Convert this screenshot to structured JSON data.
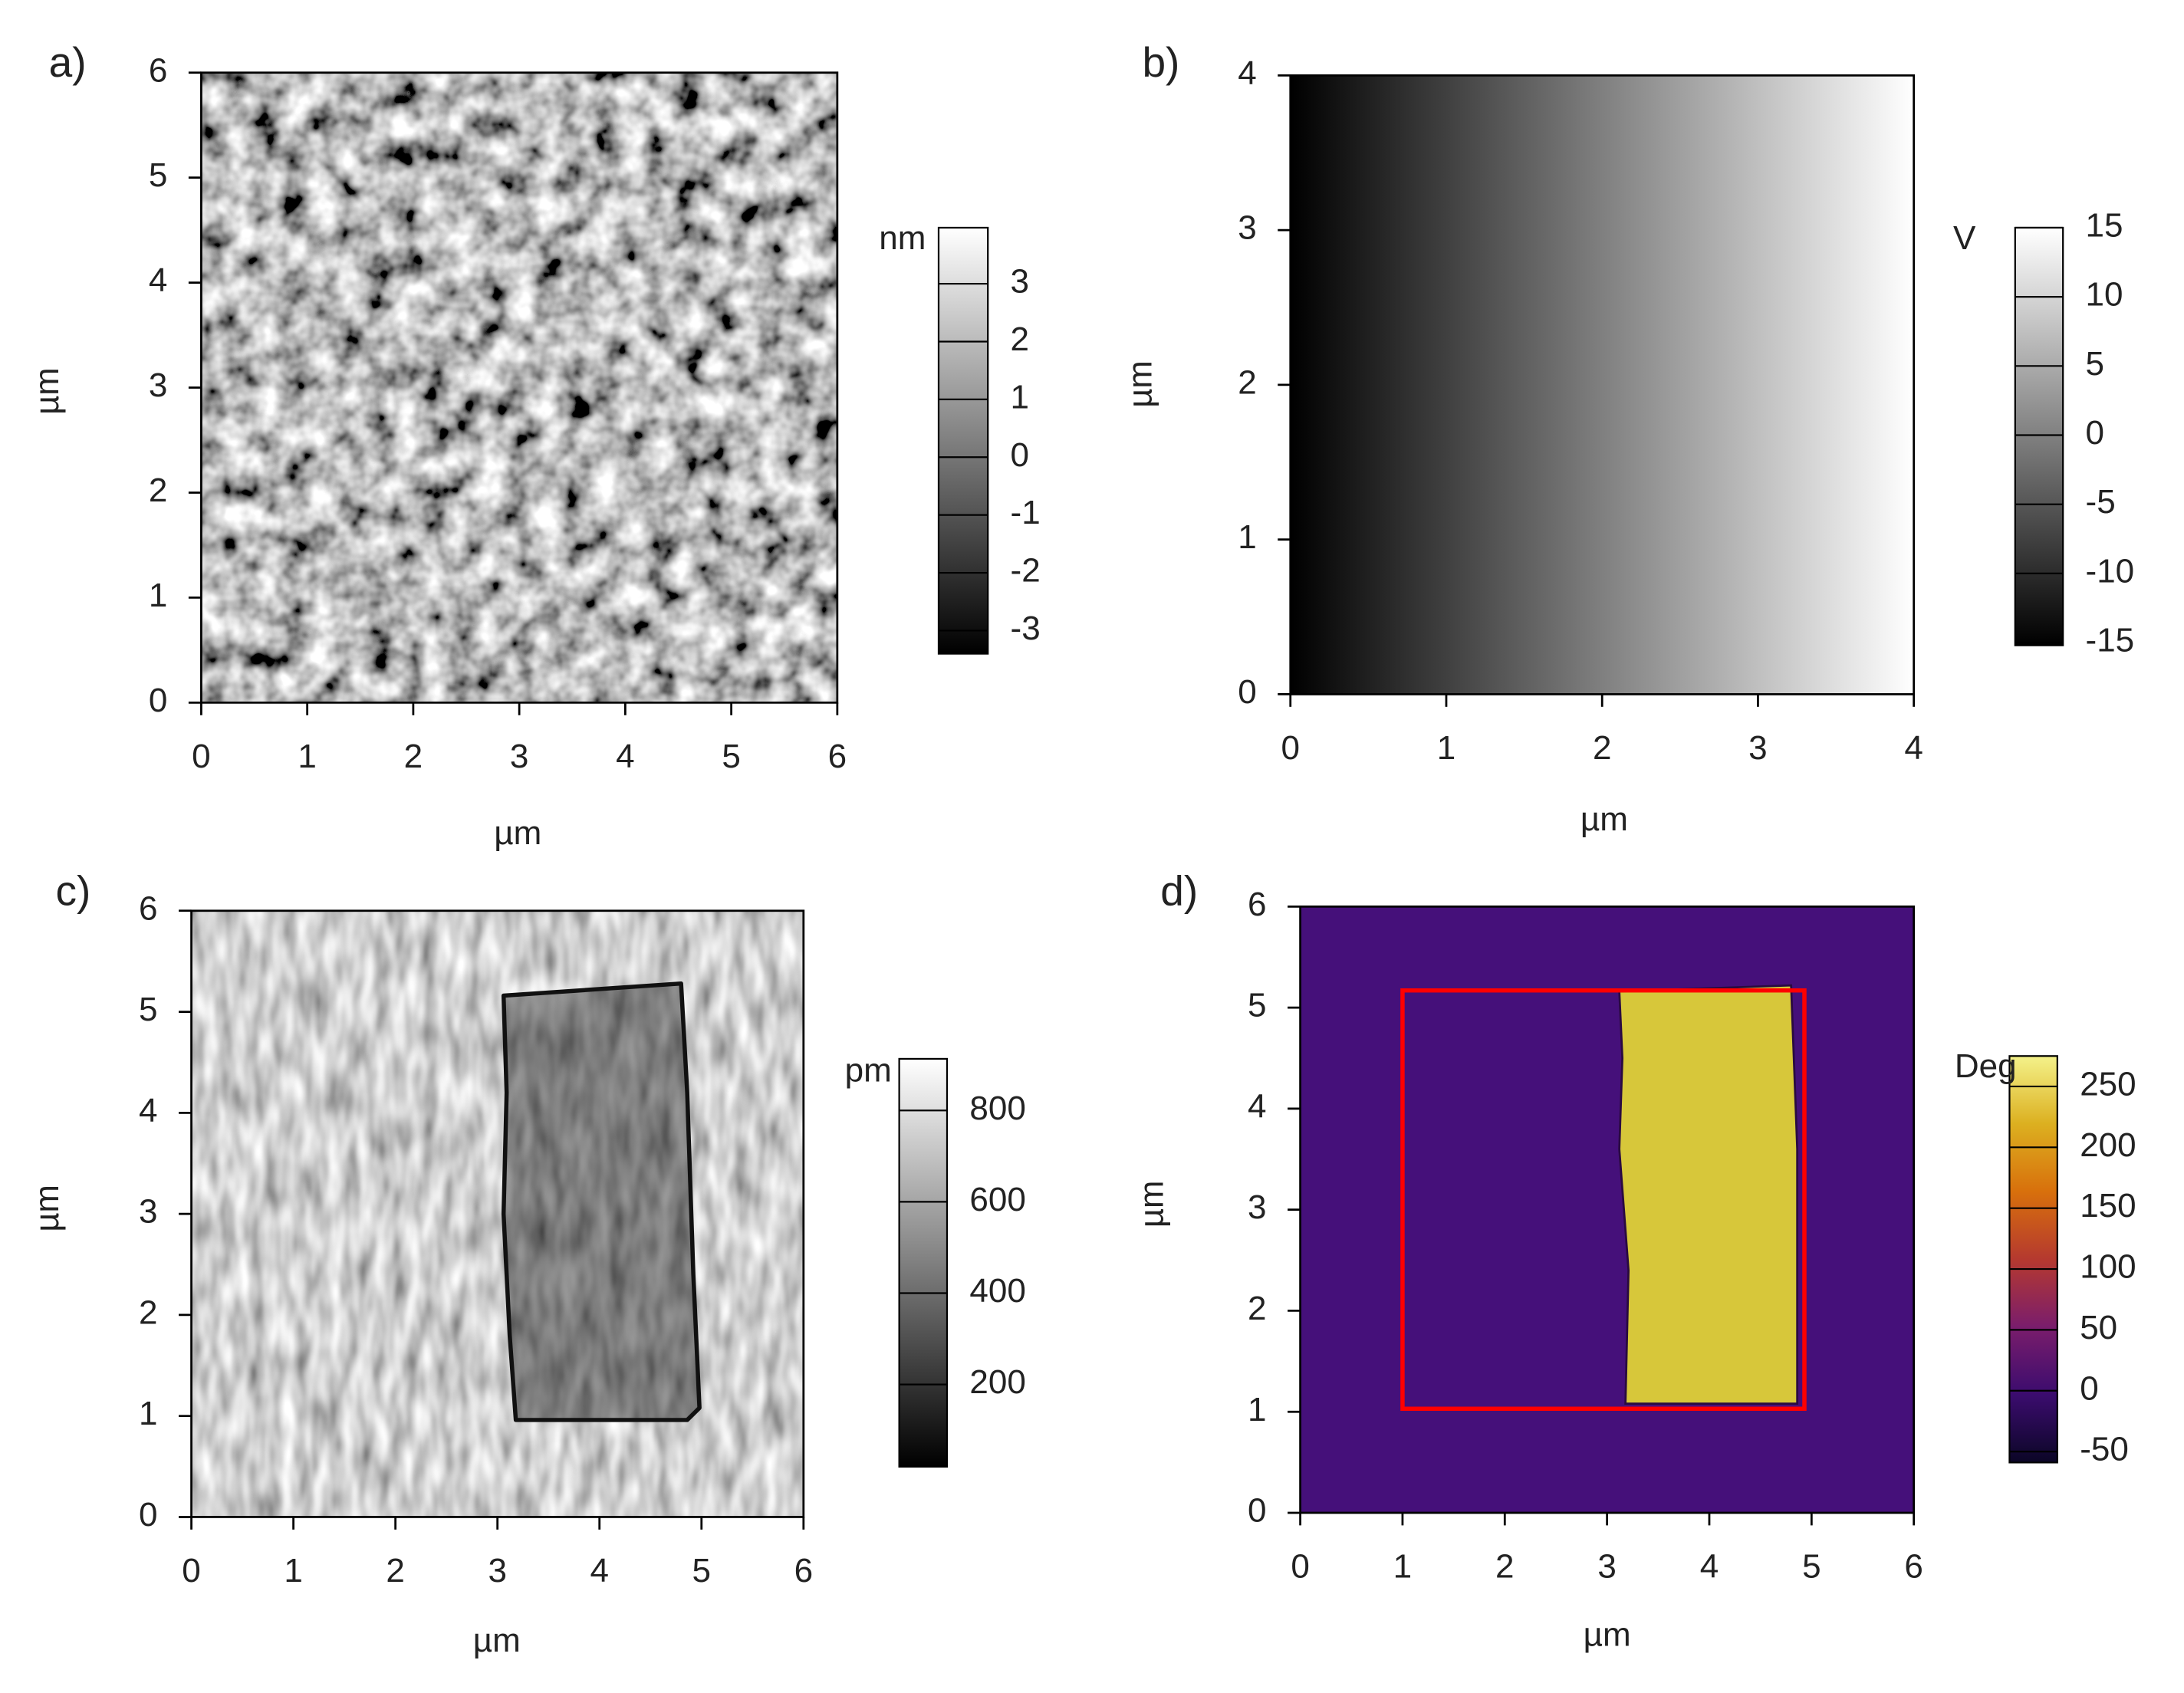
{
  "chart_data": [
    {
      "type": "image",
      "panel_label": "a)",
      "xlabel": "µm",
      "ylabel": "µm",
      "xlim": [
        0,
        6
      ],
      "ylim": [
        0,
        6
      ],
      "xticks": [
        0,
        1,
        2,
        3,
        4,
        5,
        6
      ],
      "yticks": [
        0,
        1,
        2,
        3,
        4,
        5,
        6
      ],
      "colorbar": {
        "label": "nm",
        "clim": [
          -3.4,
          3.97
        ],
        "ticks": [
          -3,
          -2,
          -1,
          0,
          1,
          2,
          3
        ],
        "colors": [
          "#000000",
          "#ffffff"
        ]
      }
    },
    {
      "type": "image",
      "panel_label": "b)",
      "xlabel": "µm",
      "ylabel": "µm",
      "xlim": [
        0,
        4
      ],
      "ylim": [
        0,
        4
      ],
      "xticks": [
        0,
        1,
        2,
        3,
        4
      ],
      "yticks": [
        0,
        1,
        2,
        3,
        4
      ],
      "colorbar": {
        "label": "V",
        "clim": [
          -15.2,
          15
        ],
        "ticks": [
          -15,
          -10,
          -5,
          0,
          5,
          10,
          15
        ],
        "colors": [
          "#000000",
          "#ffffff"
        ]
      }
    },
    {
      "type": "image",
      "panel_label": "c)",
      "xlabel": "µm",
      "ylabel": "µm",
      "xlim": [
        0,
        6
      ],
      "ylim": [
        0,
        6
      ],
      "xticks": [
        0,
        1,
        2,
        3,
        4,
        5,
        6
      ],
      "yticks": [
        0,
        1,
        2,
        3,
        4,
        5,
        6
      ],
      "colorbar": {
        "label": "pm",
        "clim": [
          20,
          913
        ],
        "ticks": [
          200,
          400,
          600,
          800
        ],
        "colors": [
          "#000000",
          "#ffffff"
        ]
      }
    },
    {
      "type": "image",
      "panel_label": "d)",
      "xlabel": "µm",
      "ylabel": "µm",
      "xlim": [
        0,
        6
      ],
      "ylim": [
        0,
        6
      ],
      "xticks": [
        0,
        1,
        2,
        3,
        4,
        5,
        6
      ],
      "yticks": [
        0,
        1,
        2,
        3,
        4,
        5,
        6
      ],
      "colorbar": {
        "label": "Deg",
        "clim": [
          -59,
          275
        ],
        "ticks": [
          -50,
          0,
          50,
          100,
          150,
          200,
          250
        ],
        "colors": [
          "#0b0626",
          "#3b0c6e",
          "#7a1d6c",
          "#b5392f",
          "#d8700c",
          "#dcb020",
          "#f4f28a"
        ]
      },
      "rectangle": {
        "x": [
          1.0,
          4.93
        ],
        "y": [
          1.03,
          5.17
        ],
        "color": "#ff0000"
      }
    }
  ]
}
